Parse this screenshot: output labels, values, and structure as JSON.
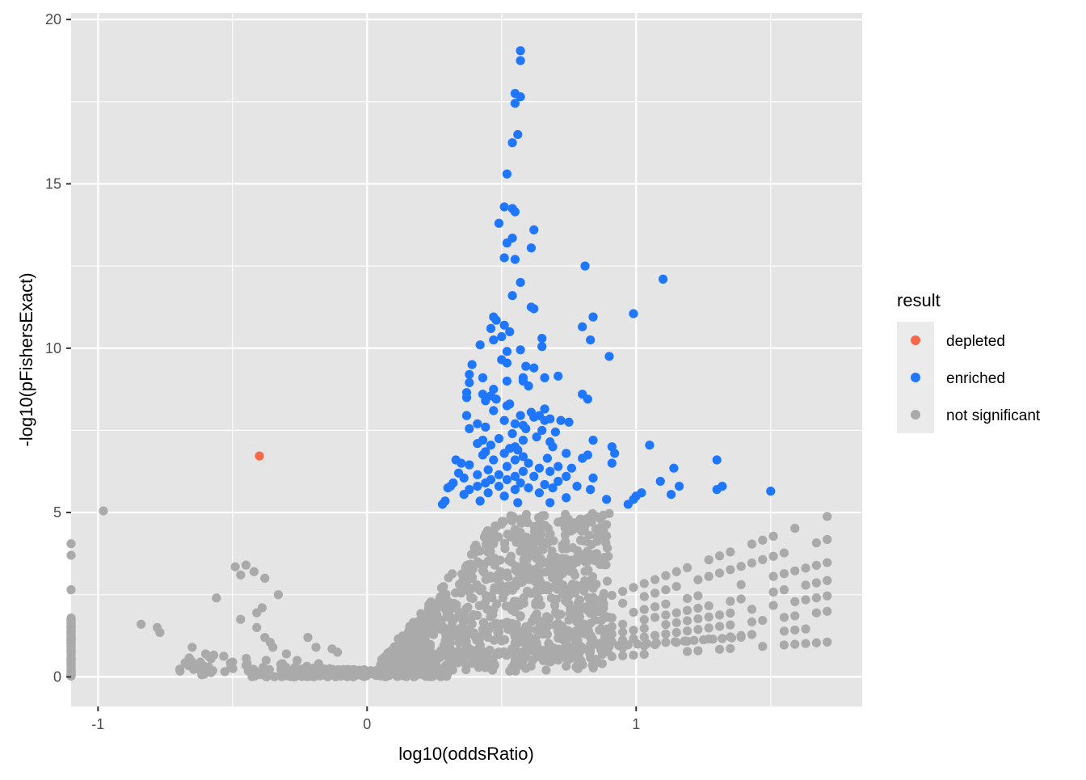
{
  "chart_data": {
    "type": "scatter",
    "title": "",
    "xlabel": "log10(oddsRatio)",
    "ylabel": "-log10(pFishersExact)",
    "xlim": [
      -1.1,
      1.84
    ],
    "ylim": [
      -0.9,
      20.2
    ],
    "x_ticks": [
      -1,
      0,
      1
    ],
    "x_tick_labels": [
      "-1",
      "0",
      "1"
    ],
    "y_ticks": [
      0,
      5,
      10,
      15,
      20
    ],
    "y_tick_labels": [
      "0",
      "5",
      "10",
      "15",
      "20"
    ],
    "grid": true,
    "legend": {
      "title": "result",
      "position": "right",
      "entries": [
        "depleted",
        "enriched",
        "not significant"
      ]
    },
    "colors": {
      "depleted": "#F8694A",
      "enriched": "#1F77FF",
      "not significant": "#AAAAAA",
      "panel": "#E5E5E5",
      "grid": "#FFFFFF"
    },
    "series": [
      {
        "name": "depleted",
        "points": [
          [
            -0.4,
            6.72
          ]
        ]
      },
      {
        "name": "enriched",
        "points": [
          [
            0.57,
            19.05
          ],
          [
            0.57,
            18.75
          ],
          [
            0.55,
            17.75
          ],
          [
            0.57,
            17.65
          ],
          [
            0.55,
            17.45
          ],
          [
            0.56,
            16.5
          ],
          [
            0.54,
            16.25
          ],
          [
            0.52,
            15.3
          ],
          [
            0.51,
            14.3
          ],
          [
            0.54,
            14.25
          ],
          [
            0.55,
            14.15
          ],
          [
            0.49,
            13.8
          ],
          [
            0.62,
            13.6
          ],
          [
            0.54,
            13.35
          ],
          [
            0.52,
            13.2
          ],
          [
            0.61,
            13.05
          ],
          [
            0.51,
            12.75
          ],
          [
            0.55,
            12.7
          ],
          [
            0.81,
            12.5
          ],
          [
            1.1,
            12.1
          ],
          [
            0.57,
            12.0
          ],
          [
            0.54,
            11.6
          ],
          [
            0.61,
            11.25
          ],
          [
            0.62,
            11.2
          ],
          [
            0.99,
            11.05
          ],
          [
            0.84,
            10.95
          ],
          [
            0.47,
            10.95
          ],
          [
            0.48,
            10.85
          ],
          [
            0.51,
            10.7
          ],
          [
            0.46,
            10.6
          ],
          [
            0.8,
            10.65
          ],
          [
            0.53,
            10.5
          ],
          [
            0.5,
            10.35
          ],
          [
            0.65,
            10.3
          ],
          [
            0.47,
            10.25
          ],
          [
            0.83,
            10.25
          ],
          [
            0.42,
            10.1
          ],
          [
            0.65,
            10.05
          ],
          [
            0.57,
            9.95
          ],
          [
            0.52,
            9.9
          ],
          [
            0.9,
            9.75
          ],
          [
            0.5,
            9.65
          ],
          [
            0.52,
            9.55
          ],
          [
            0.39,
            9.5
          ],
          [
            0.59,
            9.45
          ],
          [
            0.62,
            9.4
          ],
          [
            0.38,
            9.2
          ],
          [
            0.58,
            9.1
          ],
          [
            0.71,
            9.15
          ],
          [
            0.43,
            9.1
          ],
          [
            0.66,
            9.1
          ],
          [
            0.52,
            9.0
          ],
          [
            0.58,
            9.0
          ],
          [
            0.38,
            8.95
          ],
          [
            0.6,
            8.85
          ],
          [
            0.47,
            8.75
          ],
          [
            0.37,
            8.65
          ],
          [
            0.43,
            8.6
          ],
          [
            0.46,
            8.55
          ],
          [
            0.8,
            8.6
          ],
          [
            0.37,
            8.5
          ],
          [
            0.48,
            8.45
          ],
          [
            0.44,
            8.4
          ],
          [
            0.82,
            8.45
          ],
          [
            0.53,
            8.3
          ],
          [
            0.52,
            8.25
          ],
          [
            0.66,
            8.15
          ],
          [
            0.47,
            8.1
          ],
          [
            0.61,
            8.05
          ],
          [
            0.37,
            7.95
          ],
          [
            0.57,
            7.95
          ],
          [
            0.64,
            7.95
          ],
          [
            0.62,
            7.9
          ],
          [
            0.68,
            7.85
          ],
          [
            0.66,
            7.8
          ],
          [
            0.72,
            7.8
          ],
          [
            0.75,
            7.75
          ],
          [
            0.51,
            7.8
          ],
          [
            0.55,
            7.7
          ],
          [
            0.41,
            7.7
          ],
          [
            0.58,
            7.65
          ],
          [
            0.44,
            7.6
          ],
          [
            0.59,
            7.55
          ],
          [
            0.38,
            7.55
          ],
          [
            0.65,
            7.5
          ],
          [
            0.7,
            7.45
          ],
          [
            0.54,
            7.4
          ],
          [
            0.63,
            7.3
          ],
          [
            0.49,
            7.25
          ],
          [
            0.43,
            7.2
          ],
          [
            0.58,
            7.2
          ],
          [
            0.68,
            7.15
          ],
          [
            0.84,
            7.2
          ],
          [
            0.41,
            7.1
          ],
          [
            1.05,
            7.05
          ],
          [
            0.46,
            7.05
          ],
          [
            0.55,
            7.0
          ],
          [
            0.69,
            7.0
          ],
          [
            0.53,
            6.95
          ],
          [
            0.91,
            7.0
          ],
          [
            0.56,
            6.9
          ],
          [
            0.44,
            6.85
          ],
          [
            0.51,
            6.8
          ],
          [
            0.74,
            6.8
          ],
          [
            0.82,
            6.75
          ],
          [
            0.92,
            6.8
          ],
          [
            0.43,
            6.75
          ],
          [
            0.58,
            6.7
          ],
          [
            0.67,
            6.65
          ],
          [
            0.8,
            6.65
          ],
          [
            0.47,
            6.6
          ],
          [
            0.33,
            6.6
          ],
          [
            0.55,
            6.6
          ],
          [
            0.35,
            6.5
          ],
          [
            1.3,
            6.6
          ],
          [
            0.38,
            6.45
          ],
          [
            0.91,
            6.5
          ],
          [
            0.6,
            6.5
          ],
          [
            0.71,
            6.4
          ],
          [
            0.52,
            6.4
          ],
          [
            0.64,
            6.35
          ],
          [
            0.76,
            6.35
          ],
          [
            0.45,
            6.3
          ],
          [
            0.58,
            6.25
          ],
          [
            1.14,
            6.35
          ],
          [
            0.68,
            6.25
          ],
          [
            0.34,
            6.2
          ],
          [
            0.41,
            6.15
          ],
          [
            0.49,
            6.15
          ],
          [
            0.55,
            6.1
          ],
          [
            0.62,
            6.1
          ],
          [
            0.74,
            6.1
          ],
          [
            0.84,
            6.05
          ],
          [
            0.36,
            6.05
          ],
          [
            0.46,
            6.0
          ],
          [
            0.52,
            6.0
          ],
          [
            0.71,
            5.95
          ],
          [
            1.09,
            5.95
          ],
          [
            0.32,
            5.9
          ],
          [
            0.44,
            5.9
          ],
          [
            0.57,
            5.9
          ],
          [
            0.66,
            5.85
          ],
          [
            0.78,
            5.8
          ],
          [
            0.31,
            5.8
          ],
          [
            0.41,
            5.8
          ],
          [
            0.49,
            5.8
          ],
          [
            1.16,
            5.8
          ],
          [
            1.32,
            5.8
          ],
          [
            0.6,
            5.75
          ],
          [
            0.69,
            5.75
          ],
          [
            0.3,
            5.75
          ],
          [
            0.38,
            5.7
          ],
          [
            0.55,
            5.7
          ],
          [
            0.83,
            5.7
          ],
          [
            1.02,
            5.6
          ],
          [
            1.3,
            5.7
          ],
          [
            1.5,
            5.65
          ],
          [
            0.45,
            5.6
          ],
          [
            0.64,
            5.6
          ],
          [
            0.36,
            5.55
          ],
          [
            1.0,
            5.5
          ],
          [
            0.51,
            5.5
          ],
          [
            0.74,
            5.45
          ],
          [
            0.89,
            5.4
          ],
          [
            0.99,
            5.4
          ],
          [
            1.13,
            5.55
          ],
          [
            0.29,
            5.35
          ],
          [
            0.42,
            5.35
          ],
          [
            0.56,
            5.3
          ],
          [
            0.68,
            5.3
          ],
          [
            0.28,
            5.25
          ],
          [
            0.97,
            5.25
          ]
        ]
      }
    ]
  }
}
